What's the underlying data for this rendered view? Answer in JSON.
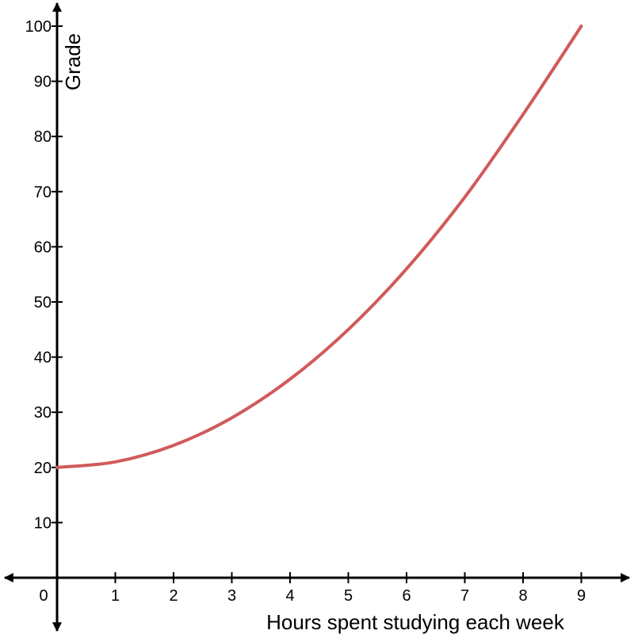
{
  "chart_data": {
    "type": "line",
    "title": "",
    "xlabel": "Hours spent studying each week",
    "ylabel": "Grade",
    "xlim": [
      0,
      9
    ],
    "ylim": [
      0,
      100
    ],
    "grid": false,
    "x_ticks": [
      "0",
      "1",
      "2",
      "3",
      "4",
      "5",
      "6",
      "7",
      "8",
      "9"
    ],
    "y_ticks": [
      "10",
      "20",
      "30",
      "40",
      "50",
      "60",
      "70",
      "80",
      "90",
      "100"
    ],
    "series": [
      {
        "color": "#d05a5a",
        "x": [
          0,
          1,
          2,
          3,
          4,
          5,
          6,
          7,
          8,
          9
        ],
        "y": [
          20,
          21,
          24,
          29,
          36,
          45,
          56,
          69,
          84,
          100
        ]
      }
    ]
  }
}
